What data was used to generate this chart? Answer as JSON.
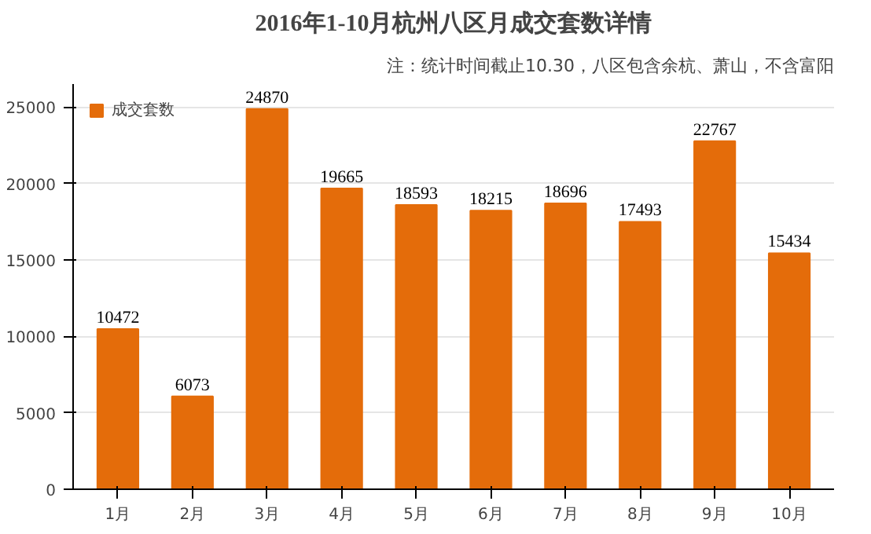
{
  "chart_data": {
    "type": "bar",
    "title": "2016年1-10月杭州八区月成交套数详情",
    "annotations": [
      "注：统计时间截止10.30，八区包含余杭、萧山，不含富阳"
    ],
    "categories": [
      "1月",
      "2月",
      "3月",
      "4月",
      "5月",
      "6月",
      "7月",
      "8月",
      "9月",
      "10月"
    ],
    "series": [
      {
        "name": "成交套数",
        "color": "#e46c0a",
        "values": [
          10472,
          6073,
          24870,
          19665,
          18593,
          18215,
          18696,
          17493,
          22767,
          15434
        ]
      }
    ],
    "ylim": [
      0,
      26500
    ],
    "yticks": [
      0,
      5000,
      10000,
      15000,
      20000,
      25000
    ],
    "grid": "y",
    "legend": "top left",
    "data_labels": true
  }
}
